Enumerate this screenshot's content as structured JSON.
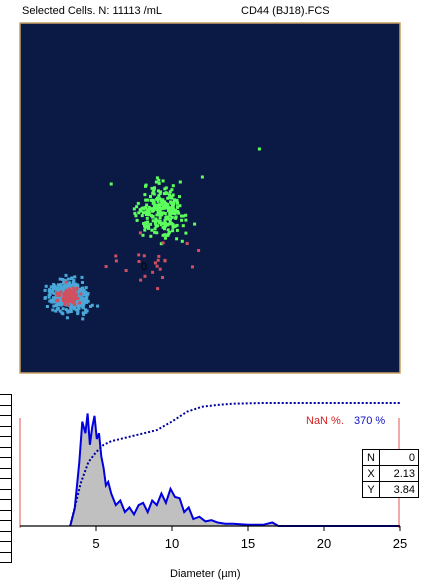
{
  "header": {
    "left": "Selected Cells.  N: 11113 /mL",
    "right": "CD44 (BJ18).FCS"
  },
  "legend": {
    "nan": "NaN %.",
    "pct": "370 %"
  },
  "stats_table": [
    {
      "key": "N",
      "value": "0"
    },
    {
      "key": "X",
      "value": "2.13"
    },
    {
      "key": "Y",
      "value": "3.84"
    }
  ],
  "colors": {
    "plot_bg": "#0b1a45",
    "border": "#c8a060",
    "green": "#5cff5c",
    "cyan": "#4aa8d8",
    "pink": "#d05060",
    "hist_line": "#0000e0",
    "hist_fill": "#c0c0c0",
    "cursor": "#e05050"
  },
  "chart_data": [
    {
      "type": "scatter",
      "title": "",
      "clusters": [
        {
          "color": "green",
          "center": [
            0.37,
            0.46
          ],
          "spread": [
            0.055,
            0.06
          ],
          "count": 260
        },
        {
          "color": "cyan",
          "center": [
            0.13,
            0.22
          ],
          "spread": [
            0.04,
            0.035
          ],
          "count": 520
        },
        {
          "color": "pink",
          "center": [
            0.13,
            0.22
          ],
          "spread": [
            0.025,
            0.022
          ],
          "count": 90
        },
        {
          "color": "pink",
          "center": [
            0.35,
            0.31
          ],
          "spread": [
            0.08,
            0.06
          ],
          "count": 22
        }
      ],
      "marker_label": "0"
    },
    {
      "type": "area",
      "xlabel": "Diameter (µm)",
      "x_ticks": [
        5,
        10,
        15,
        20,
        25
      ],
      "xlim": [
        0,
        25
      ],
      "ylim": [
        0,
        1
      ],
      "series": [
        {
          "x": [
            3.3,
            3.6,
            3.9,
            4.1,
            4.3,
            4.45,
            4.6,
            4.75,
            4.9,
            5.05,
            5.2,
            5.35,
            5.5,
            5.65,
            5.8,
            6.0,
            6.3,
            6.6,
            6.9,
            7.2,
            7.5,
            7.8,
            8.1,
            8.4,
            8.7,
            9.0,
            9.3,
            9.6,
            9.9,
            10.2,
            10.5,
            10.8,
            11.1,
            11.4,
            11.8,
            12.2,
            12.6,
            13.0,
            13.5,
            14.0,
            15.0,
            16.0,
            16.6,
            17.0,
            25.0
          ],
          "values": [
            0.0,
            0.15,
            0.55,
            0.9,
            0.8,
            0.97,
            0.7,
            0.85,
            0.95,
            0.75,
            0.8,
            0.6,
            0.5,
            0.35,
            0.38,
            0.28,
            0.18,
            0.22,
            0.12,
            0.16,
            0.1,
            0.18,
            0.2,
            0.12,
            0.22,
            0.18,
            0.28,
            0.2,
            0.32,
            0.25,
            0.24,
            0.12,
            0.16,
            0.06,
            0.08,
            0.04,
            0.05,
            0.03,
            0.02,
            0.02,
            0.01,
            0.01,
            0.03,
            0.0,
            0.0
          ]
        },
        {
          "name": "",
          "x": [
            3.3,
            4.0,
            4.5,
            5.0,
            5.5,
            6.0,
            7.0,
            8.0,
            9.0,
            10.0,
            11.0,
            12.0,
            13.0,
            14.0,
            16.0,
            25.0
          ],
          "values": [
            0.0,
            0.35,
            0.52,
            0.6,
            0.66,
            0.69,
            0.72,
            0.75,
            0.78,
            0.85,
            0.93,
            0.97,
            0.985,
            0.995,
            1.0,
            1.0
          ],
          "style": "dotted"
        }
      ]
    }
  ],
  "hist": {
    "xlabel": "Diameter (µm)",
    "tick_labels": [
      "5",
      "10",
      "15",
      "20",
      "25"
    ]
  }
}
